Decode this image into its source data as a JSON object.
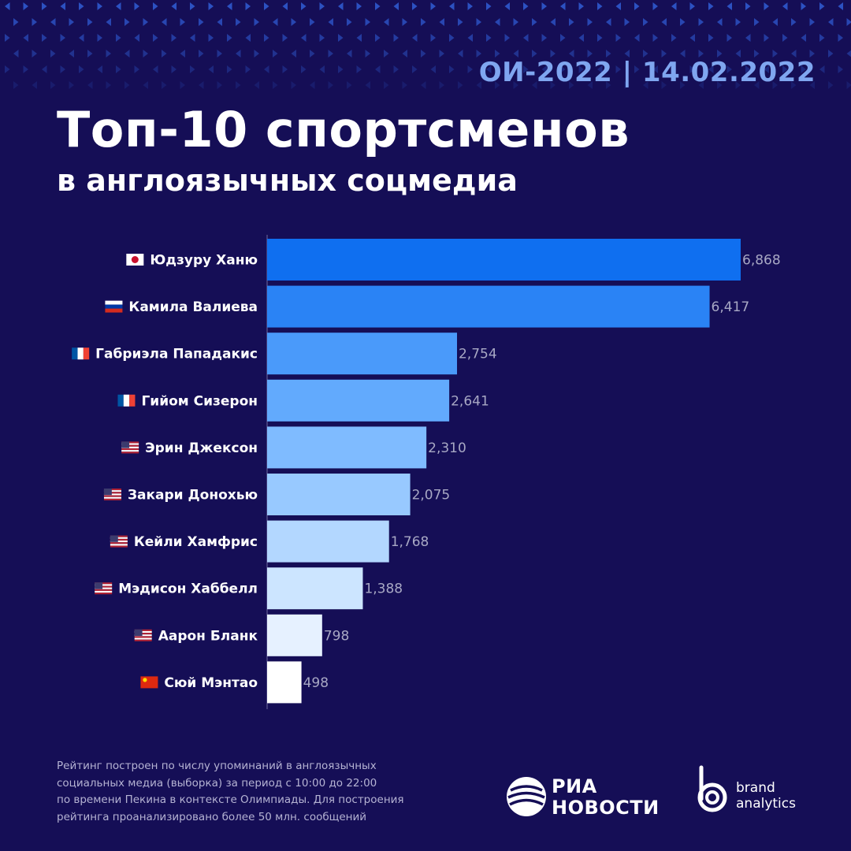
{
  "header": {
    "event": "ОИ-2022 | 14.02.2022",
    "title": "Топ-10 спортсменов",
    "subtitle": "в англоязычных соцмедиа"
  },
  "chart_data": {
    "type": "bar",
    "orientation": "horizontal",
    "categories": [
      "Юдзуру Ханю",
      "Камила Валиева",
      "Габриэла Пападакис",
      "Гийом Сизерон",
      "Эрин Джексон",
      "Закари Донохью",
      "Кейли Хамфрис",
      "Мэдисон Хаббелл",
      "Аарон Бланк",
      "Сюй Мэнтао"
    ],
    "flags": [
      "jp",
      "ru",
      "fr",
      "fr",
      "us",
      "us",
      "us",
      "us",
      "us",
      "cn"
    ],
    "values": [
      6868,
      6417,
      2754,
      2641,
      2310,
      2075,
      1768,
      1388,
      798,
      498
    ],
    "value_labels": [
      "6,868",
      "6,417",
      "2,754",
      "2,641",
      "2,310",
      "2,075",
      "1,768",
      "1,388",
      "798",
      "498"
    ],
    "bar_colors": [
      "#0f6ff0",
      "#2a83f5",
      "#4a9afa",
      "#62aafd",
      "#7fbbff",
      "#98c9ff",
      "#b3d7ff",
      "#cce5ff",
      "#e6f1ff",
      "#ffffff"
    ],
    "xlim": [
      0,
      6868
    ],
    "grid": false,
    "legend": "none"
  },
  "footer": {
    "note_lines": [
      "Рейтинг построен по числу упоминаний в англоязычных",
      "социальных медиа (выборка) за период с 10:00 до 22:00",
      "по времени Пекина в контексте Олимпиады. Для построения",
      "рейтинга проанализировано более 50 млн. сообщений"
    ],
    "ria_line1": "РИА",
    "ria_line2": "НОВОСТИ",
    "ba_line1": "brand",
    "ba_line2": "analytics"
  },
  "colors": {
    "background": "#150e56",
    "event_text": "#7fa6f0",
    "value_text": "#a8a8c4",
    "pattern": "#2d55c8"
  }
}
